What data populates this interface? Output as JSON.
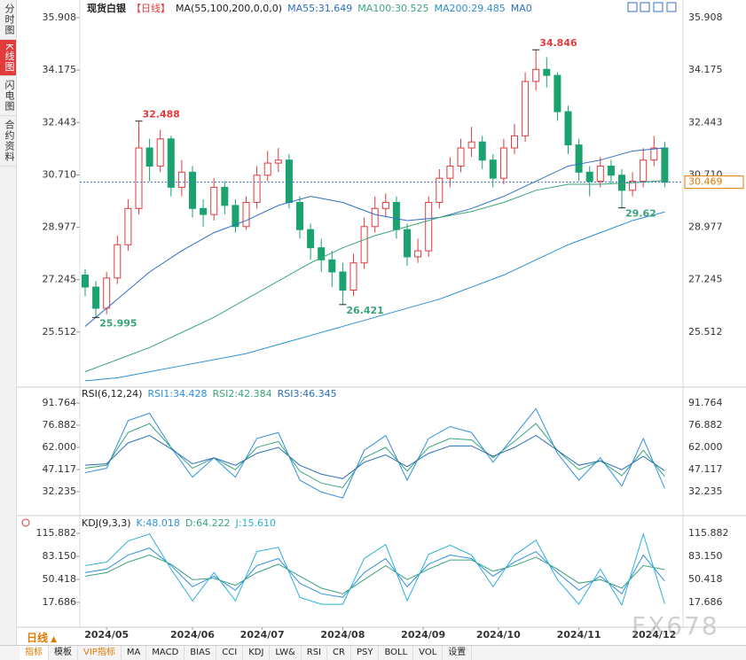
{
  "chart_data": {
    "type": "candlestick",
    "title": "现货白银",
    "period": "【日线】",
    "ma_label": "MA(55,100,200,0,0,0)",
    "up_color": "#e23b3b",
    "down_color": "#1aa36f",
    "candles": {
      "open": [
        27.4,
        27.0,
        26.3,
        27.3,
        28.4,
        29.6,
        31.6,
        31.0,
        31.9,
        30.3,
        30.8,
        29.6,
        29.4,
        30.3,
        29.7,
        29.0,
        29.8,
        30.7,
        31.1,
        31.2,
        29.8,
        28.9,
        28.3,
        27.9,
        27.5,
        26.9,
        27.8,
        29.0,
        29.6,
        29.8,
        28.9,
        28.0,
        28.2,
        29.8,
        30.6,
        31.0,
        31.6,
        31.8,
        31.2,
        30.6,
        31.6,
        32.0,
        33.8,
        34.2,
        34.0,
        32.8,
        31.7,
        30.8,
        30.5,
        31.0,
        30.7,
        30.2,
        30.5,
        31.2,
        31.6
      ],
      "high": [
        27.6,
        27.2,
        27.5,
        28.7,
        29.9,
        32.488,
        31.9,
        32.2,
        32.0,
        31.2,
        31.0,
        29.9,
        30.6,
        30.5,
        29.9,
        30.0,
        31.0,
        31.5,
        31.6,
        31.4,
        30.0,
        29.1,
        28.6,
        28.2,
        27.8,
        28.1,
        29.3,
        30.0,
        30.1,
        30.0,
        29.1,
        28.6,
        30.0,
        30.9,
        31.3,
        31.9,
        32.3,
        32.0,
        31.4,
        31.9,
        32.4,
        34.1,
        34.846,
        34.6,
        34.1,
        33.0,
        31.9,
        31.0,
        31.3,
        31.2,
        30.9,
        30.8,
        31.6,
        32.0,
        31.8
      ],
      "low": [
        26.7,
        25.995,
        26.1,
        27.1,
        28.2,
        29.4,
        30.5,
        30.8,
        30.0,
        30.0,
        29.3,
        29.0,
        29.2,
        29.4,
        28.8,
        28.9,
        29.6,
        30.5,
        30.8,
        29.6,
        28.6,
        27.9,
        27.5,
        27.0,
        26.421,
        26.7,
        27.6,
        28.8,
        29.3,
        28.6,
        27.7,
        27.8,
        28.0,
        29.6,
        30.3,
        30.8,
        31.3,
        30.9,
        30.3,
        30.4,
        31.4,
        31.8,
        33.5,
        33.6,
        32.5,
        31.4,
        30.5,
        30.0,
        30.3,
        30.4,
        29.62,
        30.0,
        30.3,
        31.0,
        30.3
      ],
      "close": [
        27.0,
        26.3,
        27.3,
        28.4,
        29.6,
        31.6,
        31.0,
        31.9,
        30.3,
        30.8,
        29.6,
        29.4,
        30.3,
        29.7,
        29.0,
        29.8,
        30.7,
        31.1,
        31.2,
        29.8,
        28.9,
        28.3,
        27.9,
        27.5,
        26.9,
        27.8,
        29.0,
        29.6,
        29.8,
        28.9,
        28.0,
        28.2,
        29.8,
        30.6,
        31.0,
        31.6,
        31.8,
        31.2,
        30.6,
        31.6,
        32.0,
        33.8,
        34.2,
        34.0,
        32.8,
        31.7,
        30.8,
        30.5,
        31.0,
        30.7,
        30.2,
        30.5,
        31.2,
        31.6,
        30.469
      ]
    },
    "xticks": [
      {
        "value": 2,
        "label": "2024/05"
      },
      {
        "value": 10,
        "label": "2024/06"
      },
      {
        "value": 16.5,
        "label": "2024/07"
      },
      {
        "value": 24,
        "label": "2024/08"
      },
      {
        "value": 31.5,
        "label": "2024/09"
      },
      {
        "value": 38.5,
        "label": "2024/10"
      },
      {
        "value": 46,
        "label": "2024/11"
      },
      {
        "value": 53,
        "label": "2024/12"
      }
    ],
    "ylim": [
      23.75,
      36.2
    ],
    "yticks": [
      35.908,
      34.175,
      32.443,
      {
        "value": 30.71,
        "label": "30.710"
      },
      28.977,
      27.245,
      25.512
    ],
    "last_price": 30.469,
    "annotations": [
      {
        "x": 5,
        "y": 32.488,
        "color": "#e23b3b"
      },
      {
        "x": 42,
        "y": 34.846,
        "color": "#e23b3b"
      },
      {
        "x": 1,
        "y": 25.995,
        "color": "#3aa57a"
      },
      {
        "x": 24,
        "y": 26.421,
        "color": "#3aa57a"
      },
      {
        "x": 50,
        "y": 29.62,
        "color": "#3aa57a"
      }
    ],
    "ma_x": [
      0,
      3,
      6,
      9,
      12,
      15,
      18,
      21,
      24,
      27,
      30,
      33,
      36,
      39,
      42,
      45,
      48,
      51,
      54
    ],
    "ma": [
      {
        "name": "MA55:31.649",
        "color": "#2f6fc4",
        "values": [
          25.7,
          26.6,
          27.5,
          28.2,
          28.8,
          29.2,
          29.7,
          30.0,
          29.8,
          29.4,
          29.2,
          29.3,
          29.6,
          30.0,
          30.5,
          31.0,
          31.2,
          31.5,
          31.6
        ]
      },
      {
        "name": "MA100:30.525",
        "color": "#3aa57a",
        "values": [
          24.2,
          24.6,
          25.0,
          25.5,
          26.0,
          26.6,
          27.2,
          27.8,
          28.3,
          28.7,
          29.0,
          29.3,
          29.5,
          29.8,
          30.2,
          30.4,
          30.4,
          30.45,
          30.525
        ]
      },
      {
        "name": "MA200:29.485",
        "color": "#2a8fd8",
        "values": [
          23.9,
          24.0,
          24.2,
          24.4,
          24.6,
          24.8,
          25.1,
          25.4,
          25.7,
          26.0,
          26.3,
          26.6,
          27.0,
          27.4,
          27.9,
          28.4,
          28.8,
          29.2,
          29.485
        ]
      }
    ],
    "ma0": "MA0",
    "rsi": {
      "title": "RSI(6,12,24)",
      "x": [
        0,
        2,
        4,
        6,
        8,
        10,
        12,
        14,
        16,
        18,
        20,
        22,
        24,
        26,
        28,
        30,
        32,
        34,
        36,
        38,
        40,
        42,
        44,
        46,
        48,
        50,
        52,
        54
      ],
      "ylim": [
        18.55,
        100.7
      ],
      "yticks": [
        91.764,
        76.882,
        {
          "value": 62,
          "label": "62.000"
        },
        47.117,
        32.235
      ],
      "series": [
        {
          "name": "RSI1:34.428",
          "color": "#2f8fe0",
          "values": [
            45,
            48,
            80,
            85,
            62,
            42,
            55,
            42,
            68,
            72,
            40,
            32,
            28,
            60,
            70,
            40,
            68,
            76,
            72,
            52,
            70,
            88,
            58,
            40,
            55,
            36,
            68,
            34.428
          ]
        },
        {
          "name": "RSI2:42.384",
          "color": "#3aa57a",
          "values": [
            48,
            50,
            72,
            78,
            62,
            48,
            55,
            47,
            62,
            66,
            46,
            38,
            35,
            55,
            62,
            46,
            62,
            68,
            67,
            55,
            66,
            78,
            60,
            47,
            53,
            43,
            60,
            42.384
          ]
        },
        {
          "name": "RSI3:46.345",
          "color": "#2a6fb8",
          "values": [
            50,
            51,
            65,
            70,
            61,
            51,
            55,
            50,
            58,
            62,
            50,
            44,
            41,
            52,
            57,
            49,
            58,
            63,
            63,
            56,
            62,
            70,
            60,
            50,
            53,
            47,
            56,
            46.345
          ]
        }
      ]
    },
    "kdj": {
      "title": "KDJ(9,3,3)",
      "x": [
        0,
        2,
        4,
        6,
        8,
        10,
        12,
        14,
        16,
        18,
        20,
        22,
        24,
        26,
        28,
        30,
        32,
        34,
        36,
        38,
        40,
        42,
        44,
        46,
        48,
        50,
        52,
        54
      ],
      "ylim": [
        -17.6,
        137.3
      ],
      "yticks": [
        115.882,
        {
          "value": 83.15,
          "label": "83.150"
        },
        50.418,
        17.686
      ],
      "series": [
        {
          "name": "K:48.018",
          "color": "#2f8fe0",
          "values": [
            60,
            65,
            85,
            95,
            70,
            40,
            55,
            35,
            70,
            80,
            45,
            30,
            25,
            60,
            80,
            40,
            72,
            85,
            80,
            55,
            75,
            90,
            60,
            35,
            55,
            30,
            85,
            48.018
          ]
        },
        {
          "name": "D:64.222",
          "color": "#3aa57a",
          "values": [
            55,
            60,
            75,
            85,
            72,
            50,
            52,
            42,
            60,
            72,
            55,
            38,
            30,
            50,
            70,
            50,
            65,
            78,
            78,
            62,
            70,
            82,
            65,
            45,
            50,
            38,
            70,
            64.222
          ]
        },
        {
          "name": "J:15.610",
          "color": "#2ab0d8",
          "values": [
            70,
            75,
            105,
            115,
            65,
            20,
            60,
            20,
            90,
            96,
            25,
            15,
            15,
            80,
            100,
            20,
            86,
            99,
            85,
            40,
            85,
            106,
            50,
            15,
            65,
            14,
            115,
            15.61
          ]
        }
      ]
    }
  },
  "ui": {
    "sidebar": [
      "分时图",
      "K线图",
      "闪电图",
      "合约资料"
    ],
    "period_button": "日线",
    "toolbar": [
      "指标",
      "模板",
      "VIP指标",
      "MA",
      "MACD",
      "BIAS",
      "CCI",
      "KDJ",
      "LW&",
      "RSI",
      "CR",
      "PSY",
      "BOLL",
      "VOL",
      "设置"
    ],
    "watermark": "FX678"
  }
}
